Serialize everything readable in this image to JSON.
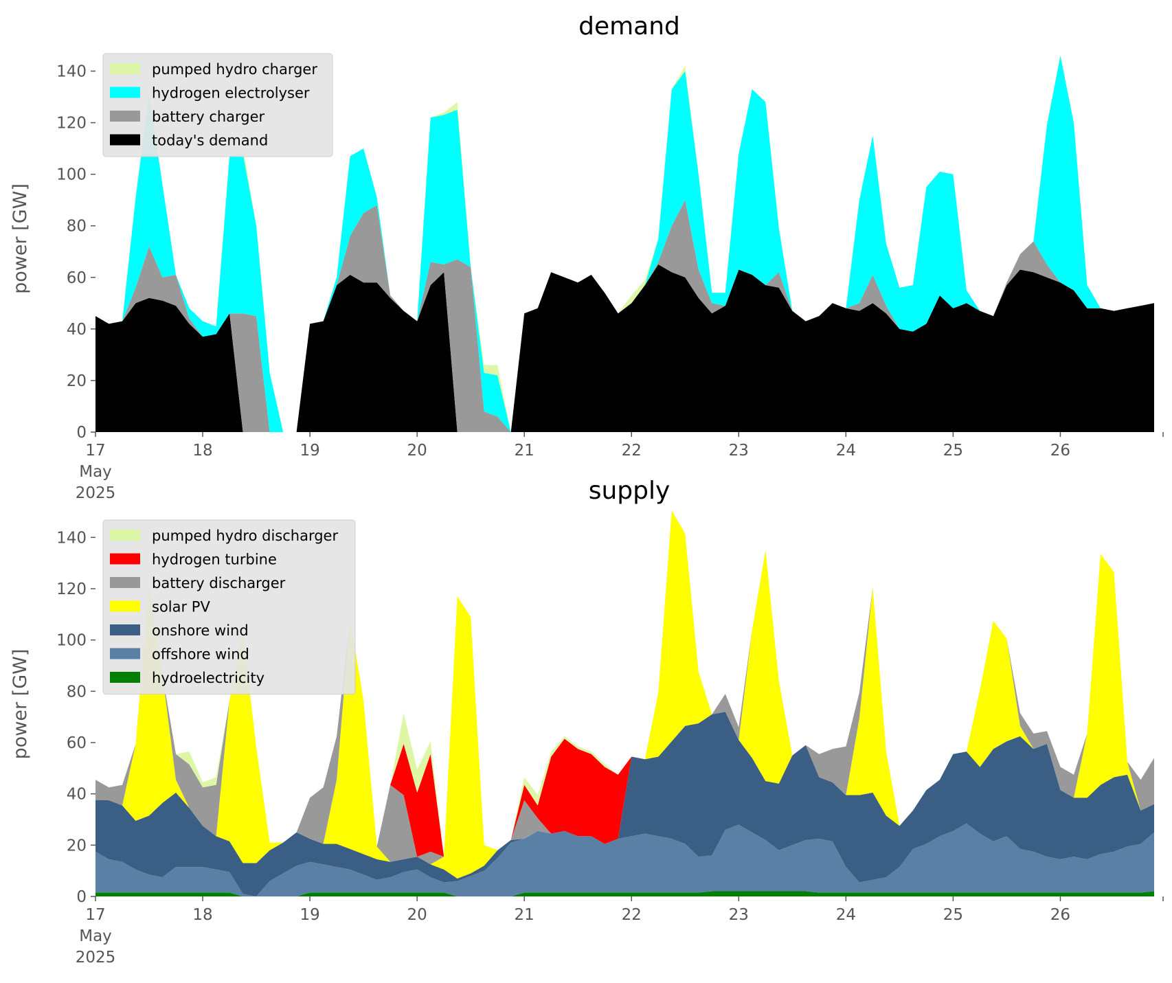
{
  "chart_data": [
    {
      "type": "area",
      "stacked": true,
      "title": "demand",
      "ylabel": "power [GW]",
      "xlabel": "",
      "ylim": [
        0,
        150
      ],
      "yticks": [
        0,
        20,
        40,
        60,
        80,
        100,
        120,
        140
      ],
      "xlim": [
        "2025-05-17T00:00",
        "2025-05-26T23:00"
      ],
      "x": [
        "2025-05-17T00:00",
        "2025-05-17T03:00",
        "2025-05-17T06:00",
        "2025-05-17T09:00",
        "2025-05-17T12:00",
        "2025-05-17T15:00",
        "2025-05-17T18:00",
        "2025-05-17T21:00",
        "2025-05-18T00:00",
        "2025-05-18T03:00",
        "2025-05-18T06:00",
        "2025-05-18T09:00",
        "2025-05-18T12:00",
        "2025-05-18T15:00",
        "2025-05-18T18:00",
        "2025-05-18T21:00",
        "2025-05-19T00:00",
        "2025-05-19T03:00",
        "2025-05-19T06:00",
        "2025-05-19T09:00",
        "2025-05-19T12:00",
        "2025-05-19T15:00",
        "2025-05-19T18:00",
        "2025-05-19T21:00",
        "2025-05-20T00:00",
        "2025-05-20T03:00",
        "2025-05-20T06:00",
        "2025-05-20T09:00",
        "2025-05-20T12:00",
        "2025-05-20T15:00",
        "2025-05-20T18:00",
        "2025-05-20T21:00",
        "2025-05-21T00:00",
        "2025-05-21T03:00",
        "2025-05-21T06:00",
        "2025-05-21T09:00",
        "2025-05-21T12:00",
        "2025-05-21T15:00",
        "2025-05-21T18:00",
        "2025-05-21T21:00",
        "2025-05-22T00:00",
        "2025-05-22T03:00",
        "2025-05-22T06:00",
        "2025-05-22T09:00",
        "2025-05-22T12:00",
        "2025-05-22T15:00",
        "2025-05-22T18:00",
        "2025-05-22T21:00",
        "2025-05-23T00:00",
        "2025-05-23T03:00",
        "2025-05-23T06:00",
        "2025-05-23T09:00",
        "2025-05-23T12:00",
        "2025-05-23T15:00",
        "2025-05-23T18:00",
        "2025-05-23T21:00",
        "2025-05-24T00:00",
        "2025-05-24T03:00",
        "2025-05-24T06:00",
        "2025-05-24T09:00",
        "2025-05-24T12:00",
        "2025-05-24T15:00",
        "2025-05-24T18:00",
        "2025-05-24T21:00",
        "2025-05-25T00:00",
        "2025-05-25T03:00",
        "2025-05-25T06:00",
        "2025-05-25T09:00",
        "2025-05-25T12:00",
        "2025-05-25T15:00",
        "2025-05-25T18:00",
        "2025-05-25T21:00",
        "2025-05-26T00:00",
        "2025-05-26T03:00",
        "2025-05-26T06:00",
        "2025-05-26T09:00",
        "2025-05-26T12:00",
        "2025-05-26T15:00",
        "2025-05-26T18:00",
        "2025-05-26T21:00"
      ],
      "xticks": {
        "labels": [
          "17\nMay\n2025",
          "18",
          "19",
          "20",
          "21",
          "22",
          "23",
          "24",
          "25",
          "26"
        ],
        "dates": [
          "2025-05-17",
          "2025-05-18",
          "2025-05-19",
          "2025-05-20",
          "2025-05-21",
          "2025-05-22",
          "2025-05-23",
          "2025-05-24",
          "2025-05-25",
          "2025-05-26"
        ]
      },
      "series": [
        {
          "name": "today's demand",
          "color": "#000000",
          "values": [
            45,
            42,
            43,
            50,
            52,
            51,
            49,
            42,
            37,
            38,
            46,
            0,
            0,
            0,
            0,
            0,
            42,
            43,
            57,
            61,
            58,
            58,
            52,
            47,
            43,
            57,
            62,
            0,
            0,
            0,
            0,
            0,
            46,
            48,
            62,
            60,
            58,
            61,
            54,
            46,
            50,
            57,
            65,
            62,
            60,
            52,
            46,
            49,
            63,
            61,
            57,
            56,
            47,
            43,
            45,
            50,
            48,
            47,
            50,
            46,
            40,
            39,
            42,
            53,
            48,
            50,
            47,
            45,
            57,
            63,
            62,
            60,
            58,
            55,
            48,
            48,
            47,
            48,
            49,
            50
          ]
        },
        {
          "name": "battery charger",
          "color": "#999999",
          "values": [
            0,
            0,
            0,
            6,
            20,
            9,
            12,
            2,
            0,
            0,
            0,
            46,
            45,
            0,
            0,
            0,
            0,
            0,
            0,
            15,
            27,
            30,
            1,
            0,
            0,
            9,
            3,
            67,
            64,
            8,
            6,
            0,
            0,
            0,
            0,
            0,
            0,
            0,
            0,
            0,
            0,
            0,
            1,
            18,
            30,
            11,
            4,
            0,
            0,
            0,
            0,
            6,
            0,
            0,
            0,
            0,
            0,
            3,
            11,
            3,
            0,
            0,
            0,
            0,
            0,
            0,
            0,
            0,
            1,
            6,
            12,
            5,
            0,
            0,
            0,
            0,
            0,
            0,
            0,
            0
          ]
        },
        {
          "name": "hydrogen electrolyser",
          "color": "#00ffff",
          "values": [
            0,
            0,
            0,
            35,
            59,
            36,
            0,
            4,
            6,
            3,
            61,
            62,
            35,
            23,
            0,
            0,
            0,
            0,
            3,
            31,
            25,
            3,
            0,
            0,
            0,
            56,
            58,
            58,
            0,
            15,
            16,
            0,
            0,
            0,
            0,
            0,
            0,
            0,
            0,
            0,
            0,
            0,
            9,
            53,
            50,
            37,
            4,
            5,
            45,
            72,
            71,
            17,
            0,
            0,
            0,
            0,
            0,
            40,
            54,
            24,
            16,
            18,
            53,
            48,
            52,
            5,
            0,
            0,
            0,
            0,
            0,
            54,
            88,
            65,
            9,
            0,
            0,
            0,
            0,
            0
          ]
        },
        {
          "name": "pumped hydro charger",
          "color": "#ddf7a6",
          "values": [
            0,
            0,
            0,
            0,
            0,
            0,
            0,
            0,
            0,
            0,
            0,
            3,
            0,
            0,
            0,
            0,
            0,
            0,
            0,
            0,
            0,
            0,
            0,
            0,
            0,
            0,
            1,
            3,
            0,
            3,
            4,
            0,
            0,
            0,
            0,
            0,
            0,
            0,
            0,
            0,
            3,
            2,
            0,
            0,
            2,
            0,
            0,
            0,
            0,
            0,
            0,
            0,
            0,
            0,
            0,
            0,
            0,
            0,
            0,
            0,
            0,
            0,
            0,
            0,
            0,
            0,
            0,
            0,
            0,
            0,
            0,
            0,
            0,
            0,
            0,
            0,
            0,
            0,
            0,
            0
          ]
        }
      ],
      "legend": {
        "placement": "upper left",
        "entries": [
          "pumped hydro charger",
          "hydrogen electrolyser",
          "battery charger",
          "today's demand"
        ]
      }
    },
    {
      "type": "area",
      "stacked": true,
      "title": "supply",
      "ylabel": "power [GW]",
      "xlabel": "",
      "ylim": [
        0,
        150
      ],
      "yticks": [
        0,
        20,
        40,
        60,
        80,
        100,
        120,
        140
      ],
      "xlim": [
        "2025-05-17T00:00",
        "2025-05-26T23:00"
      ],
      "xticks": {
        "labels": [
          "17\nMay\n2025",
          "18",
          "19",
          "20",
          "21",
          "22",
          "23",
          "24",
          "25",
          "26"
        ],
        "dates": [
          "2025-05-17",
          "2025-05-18",
          "2025-05-19",
          "2025-05-20",
          "2025-05-21",
          "2025-05-22",
          "2025-05-23",
          "2025-05-24",
          "2025-05-25",
          "2025-05-26"
        ]
      },
      "series": [
        {
          "name": "hydroelectricity",
          "color": "#008000",
          "values": [
            1.5,
            1.5,
            1.5,
            1.5,
            1.5,
            1.5,
            1.5,
            1.5,
            1.5,
            1.5,
            1.5,
            0,
            0,
            0,
            0,
            0,
            1.5,
            1.5,
            1.5,
            1.5,
            1.5,
            1.5,
            1.5,
            1.5,
            1.5,
            1.5,
            1.5,
            0,
            0,
            0,
            0,
            0,
            1.5,
            1.5,
            1.5,
            1.5,
            1.5,
            1.5,
            1.5,
            1.5,
            1.5,
            1.5,
            1.5,
            1.5,
            1.5,
            1.5,
            2,
            2,
            2,
            2,
            2,
            2,
            2,
            2,
            1.5,
            1.5,
            1.5,
            1.5,
            1.5,
            1.5,
            1.5,
            1.5,
            1.5,
            1.5,
            1.5,
            1.5,
            1.5,
            1.5,
            1.5,
            1.5,
            1.5,
            1.5,
            1.5,
            1.5,
            1.5,
            1.5,
            1.5,
            1.5,
            1.5,
            2
          ]
        },
        {
          "name": "offshore wind",
          "color": "#5b80a5",
          "values": [
            16,
            13,
            12,
            9,
            7,
            6,
            10,
            10,
            10,
            9,
            8,
            1,
            0,
            6,
            9,
            12,
            12,
            11,
            10,
            9,
            7,
            5,
            6,
            8,
            9,
            6,
            4,
            6,
            8,
            10,
            15,
            21,
            21,
            24,
            23,
            24,
            22,
            22,
            19,
            21,
            22,
            23,
            22,
            21,
            19,
            14,
            14,
            24,
            26,
            23,
            20,
            16,
            18,
            20,
            21,
            20,
            10,
            4,
            5,
            6,
            10,
            17,
            19,
            22,
            24,
            27,
            23,
            20,
            22,
            17,
            16,
            14,
            13,
            14,
            13,
            15,
            16,
            18,
            19,
            23
          ]
        },
        {
          "name": "onshore wind",
          "color": "#3b5f84",
          "values": [
            20,
            23,
            22,
            19,
            23,
            29,
            29,
            23,
            16,
            13,
            12,
            12,
            13,
            12,
            12,
            13,
            9,
            8,
            9,
            8,
            8,
            8,
            6,
            5,
            5,
            5,
            5,
            1,
            1,
            2,
            3,
            1,
            0,
            0,
            0,
            0,
            0,
            0,
            0,
            0,
            31,
            29,
            31,
            38,
            46,
            52,
            55,
            46,
            33,
            29,
            23,
            26,
            35,
            37,
            24,
            23,
            28,
            34,
            34,
            24,
            16,
            15,
            21,
            22,
            30,
            28,
            26,
            36,
            37,
            44,
            40,
            44,
            27,
            23,
            24,
            27,
            29,
            28,
            13,
            11
          ]
        },
        {
          "name": "solar PV",
          "color": "#ffff00",
          "values": [
            0,
            0,
            0,
            30,
            90,
            50,
            5,
            0,
            0,
            0,
            55,
            90,
            45,
            3,
            0,
            0,
            0,
            0,
            25,
            90,
            60,
            5,
            0,
            0,
            0,
            0,
            5,
            110,
            100,
            8,
            0,
            0,
            0,
            0,
            0,
            0,
            0,
            0,
            0,
            0,
            0,
            0,
            25,
            90,
            75,
            20,
            0,
            0,
            0,
            50,
            90,
            40,
            0,
            0,
            0,
            0,
            0,
            30,
            80,
            25,
            0,
            0,
            0,
            0,
            0,
            0,
            30,
            50,
            40,
            4,
            0,
            0,
            0,
            0,
            25,
            90,
            80,
            5,
            0,
            0
          ]
        },
        {
          "name": "battery discharger",
          "color": "#999999",
          "values": [
            8,
            5,
            8,
            0,
            0,
            0,
            10,
            17,
            15,
            20,
            0,
            0,
            0,
            0,
            0,
            0,
            16,
            22,
            17,
            0,
            0,
            0,
            30,
            25,
            0,
            5,
            0,
            0,
            0,
            0,
            0,
            0,
            15,
            5,
            0,
            0,
            0,
            0,
            0,
            0,
            0,
            0,
            0,
            0,
            0,
            0,
            0,
            7,
            5,
            0,
            0,
            0,
            0,
            0,
            9,
            13,
            19,
            10,
            0,
            0,
            0,
            0,
            0,
            0,
            0,
            0,
            0,
            0,
            0,
            5,
            6,
            5,
            9,
            9,
            0,
            0,
            0,
            0,
            12,
            18
          ]
        },
        {
          "name": "hydrogen turbine",
          "color": "#ff0000",
          "values": [
            0,
            0,
            0,
            0,
            0,
            0,
            0,
            0,
            0,
            0,
            0,
            0,
            0,
            0,
            0,
            0,
            0,
            0,
            0,
            0,
            0,
            0,
            0,
            20,
            25,
            38,
            0,
            0,
            0,
            0,
            0,
            0,
            6,
            5,
            30,
            36,
            34,
            32,
            30,
            25,
            0,
            0,
            0,
            0,
            0,
            0,
            0,
            0,
            0,
            0,
            0,
            0,
            0,
            0,
            0,
            0,
            0,
            0,
            0,
            0,
            0,
            0,
            0,
            0,
            0,
            0,
            0,
            0,
            0,
            0,
            0,
            0,
            0,
            0,
            0,
            0,
            0,
            0,
            0,
            0
          ]
        },
        {
          "name": "pumped hydro discharger",
          "color": "#ddf7a6",
          "values": [
            0,
            0,
            0,
            0,
            0,
            0,
            0,
            5,
            2,
            3,
            0,
            0,
            0,
            0,
            0,
            0,
            0,
            0,
            0,
            0,
            0,
            0,
            0,
            12,
            9,
            5,
            0,
            0,
            0,
            0,
            0,
            0,
            3,
            4,
            2,
            1,
            1,
            1,
            1,
            0,
            0,
            0,
            0,
            0,
            0,
            0,
            0,
            0,
            0,
            0,
            0,
            0,
            0,
            0,
            0,
            0,
            0,
            0,
            0,
            0,
            0,
            0,
            0,
            0,
            0,
            0,
            0,
            0,
            0,
            0,
            0,
            0,
            0,
            0,
            0,
            0,
            0,
            0,
            0,
            0
          ]
        }
      ],
      "legend": {
        "placement": "upper left",
        "entries": [
          "pumped hydro discharger",
          "hydrogen turbine",
          "battery discharger",
          "solar PV",
          "onshore wind",
          "offshore wind",
          "hydroelectricity"
        ]
      }
    }
  ]
}
